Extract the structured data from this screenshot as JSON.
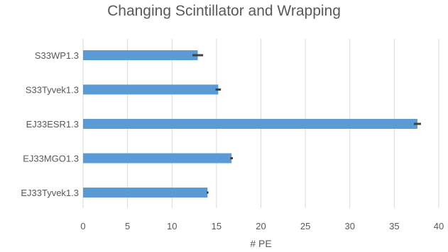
{
  "chart_data": {
    "type": "bar",
    "orientation": "horizontal",
    "title": "Changing Scintillator and Wrapping",
    "xlabel": "# PE",
    "ylabel": "",
    "xlim": [
      0,
      40
    ],
    "xticks": [
      0,
      5,
      10,
      15,
      20,
      25,
      30,
      35,
      40
    ],
    "categories": [
      "S33WP1.3",
      "S33Tyvek1.3",
      "EJ33ESR1.3",
      "EJ33MGO1.3",
      "EJ33Tyvek1.3"
    ],
    "values": [
      12.9,
      15.2,
      37.6,
      16.7,
      14.0
    ],
    "errors": [
      0.6,
      0.3,
      0.4,
      0.15,
      0.1
    ],
    "grid": "vertical",
    "legend": "none",
    "bar_color": "#5B9BD5",
    "error_color": "#404040",
    "gridline_color": "#D9D9D9"
  }
}
